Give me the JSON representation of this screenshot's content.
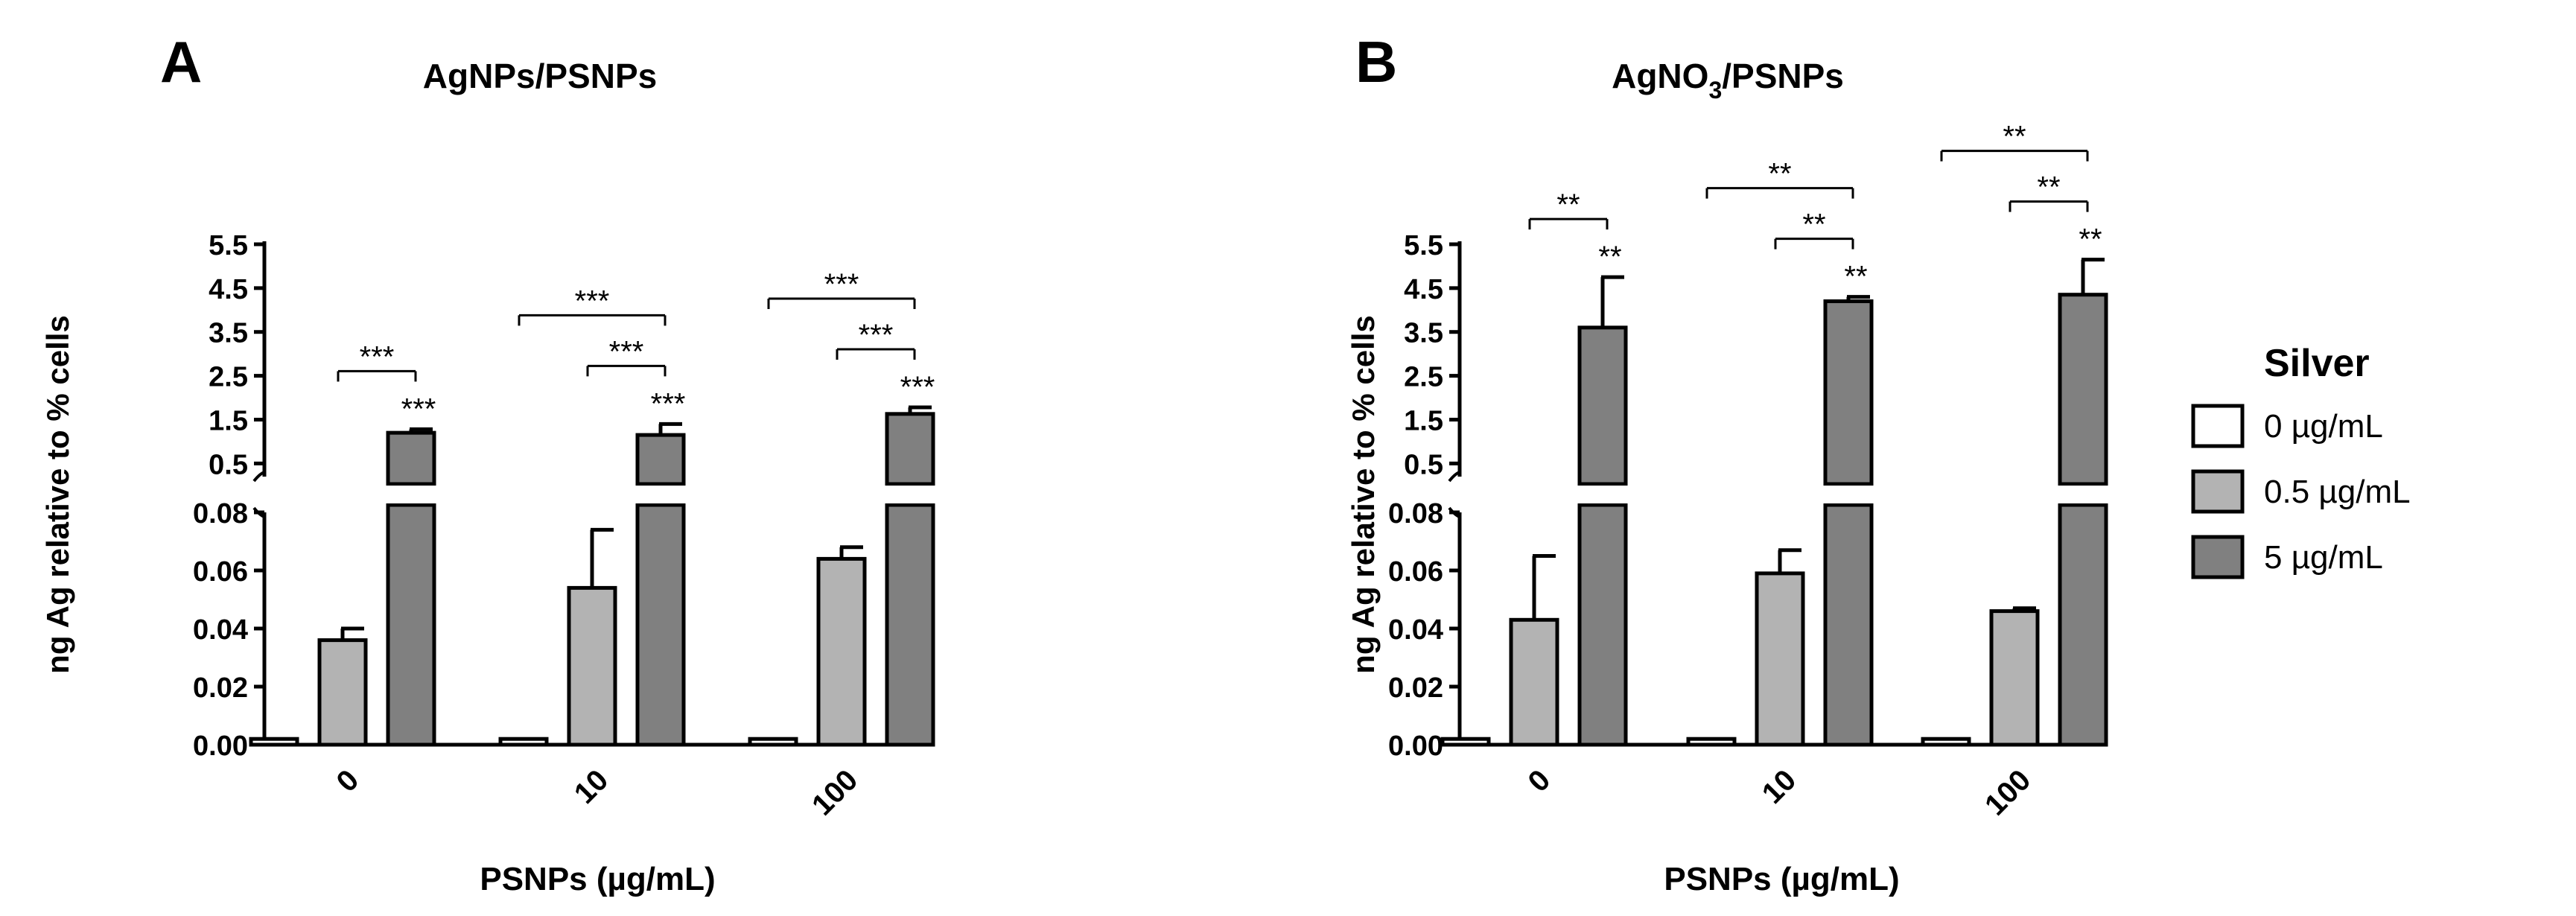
{
  "legend": {
    "title": "Silver",
    "items": [
      {
        "label": "0 µg/mL",
        "color": "#ffffff"
      },
      {
        "label": "0.5 µg/mL",
        "color": "#b3b3b3"
      },
      {
        "label": "5 µg/mL",
        "color": "#808080"
      }
    ]
  },
  "chart_data": [
    {
      "type": "bar",
      "panel_label": "A",
      "title": "AgNPs/PSNPs",
      "xlabel": "PSNPs (µg/mL)",
      "ylabel": "ng Ag relative to % cells",
      "categories": [
        "0",
        "10",
        "100"
      ],
      "broken_axis": {
        "lower": {
          "ylim": [
            0,
            0.08
          ],
          "ticks": [
            "0.00",
            "0.02",
            "0.04",
            "0.06",
            "0.08"
          ]
        },
        "upper": {
          "ylim": [
            0.2,
            5.5
          ],
          "ticks": [
            "0.5",
            "1.5",
            "2.5",
            "3.5",
            "4.5",
            "5.5"
          ]
        }
      },
      "series": [
        {
          "name": "0 µg/mL",
          "values": [
            0.002,
            0.002,
            0.002
          ],
          "errors": [
            0,
            0,
            0
          ]
        },
        {
          "name": "0.5 µg/mL",
          "values": [
            0.036,
            0.054,
            0.064
          ],
          "errors": [
            0.004,
            0.02,
            0.004
          ]
        },
        {
          "name": "5 µg/mL",
          "values": [
            1.2,
            1.15,
            1.63
          ],
          "errors": [
            0.08,
            0.25,
            0.15
          ]
        }
      ],
      "star_labels": [
        "***",
        "***",
        "***"
      ],
      "brackets": [
        {
          "from": "0.5 µg/mL",
          "to": "5 µg/mL",
          "category": "0",
          "label": "***"
        },
        {
          "from": "0 µg/mL",
          "to": "5 µg/mL",
          "category": "10",
          "label": "***"
        },
        {
          "from": "0.5 µg/mL",
          "to": "5 µg/mL",
          "category": "10",
          "label": "***"
        },
        {
          "from": "0 µg/mL",
          "to": "5 µg/mL",
          "category": "100",
          "label": "***"
        },
        {
          "from": "0.5 µg/mL",
          "to": "5 µg/mL",
          "category": "100",
          "label": "***"
        }
      ]
    },
    {
      "type": "bar",
      "panel_label": "B",
      "title": "AgNO",
      "title_subscript": "3",
      "title_suffix": "/PSNPs",
      "xlabel": "PSNPs (µg/mL)",
      "ylabel": "ng Ag relative to % cells",
      "categories": [
        "0",
        "10",
        "100"
      ],
      "broken_axis": {
        "lower": {
          "ylim": [
            0,
            0.08
          ],
          "ticks": [
            "0.00",
            "0.02",
            "0.04",
            "0.06",
            "0.08"
          ]
        },
        "upper": {
          "ylim": [
            0.2,
            5.5
          ],
          "ticks": [
            "0.5",
            "1.5",
            "2.5",
            "3.5",
            "4.5",
            "5.5"
          ]
        }
      },
      "series": [
        {
          "name": "0 µg/mL",
          "values": [
            0.002,
            0.002,
            0.002
          ],
          "errors": [
            0,
            0,
            0
          ]
        },
        {
          "name": "0.5 µg/mL",
          "values": [
            0.043,
            0.059,
            0.046
          ],
          "errors": [
            0.022,
            0.008,
            0.001
          ]
        },
        {
          "name": "5 µg/mL",
          "values": [
            3.6,
            4.2,
            4.35
          ],
          "errors": [
            1.15,
            0.1,
            0.8
          ]
        }
      ],
      "star_labels": [
        "**",
        "**",
        "**"
      ],
      "brackets": [
        {
          "from": "0.5 µg/mL",
          "to": "5 µg/mL",
          "category": "0",
          "label": "**"
        },
        {
          "from": "0 µg/mL",
          "to": "5 µg/mL",
          "category": "10",
          "label": "**"
        },
        {
          "from": "0.5 µg/mL",
          "to": "5 µg/mL",
          "category": "10",
          "label": "**"
        },
        {
          "from": "0 µg/mL",
          "to": "5 µg/mL",
          "category": "100",
          "label": "**"
        },
        {
          "from": "0.5 µg/mL",
          "to": "5 µg/mL",
          "category": "100",
          "label": "**"
        }
      ]
    }
  ]
}
